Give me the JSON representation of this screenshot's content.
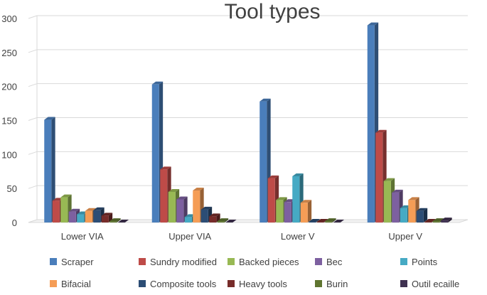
{
  "chart_data": {
    "type": "bar",
    "style": "3d-clustered-column",
    "title": "Tool types",
    "xlabel": "",
    "ylabel": "",
    "ylim": [
      0,
      300
    ],
    "yticks": [
      0,
      50,
      100,
      150,
      200,
      250,
      300
    ],
    "grid": true,
    "legend_position": "bottom",
    "categories": [
      "Lower VIA",
      "Upper VIA",
      "Lower V",
      "Upper V"
    ],
    "series": [
      {
        "name": "Scraper",
        "color": "#4a7ebb",
        "values": [
          151,
          203,
          178,
          290
        ]
      },
      {
        "name": "Sundry modified",
        "color": "#be4b48",
        "values": [
          32,
          78,
          65,
          132
        ]
      },
      {
        "name": "Backed pieces",
        "color": "#98b954",
        "values": [
          37,
          45,
          33,
          61
        ]
      },
      {
        "name": "Bec",
        "color": "#7d60a0",
        "values": [
          16,
          34,
          30,
          44
        ]
      },
      {
        "name": "Points",
        "color": "#46aac4",
        "values": [
          12,
          8,
          68,
          21
        ]
      },
      {
        "name": "Bifacial",
        "color": "#f59d56",
        "values": [
          17,
          47,
          29,
          33
        ]
      },
      {
        "name": "Composite tools",
        "color": "#2c4d75",
        "values": [
          18,
          19,
          1,
          17
        ]
      },
      {
        "name": "Heavy tools",
        "color": "#772c2a",
        "values": [
          10,
          9,
          1,
          1
        ]
      },
      {
        "name": "Burin",
        "color": "#5f7530",
        "values": [
          2,
          2,
          2,
          2
        ]
      },
      {
        "name": "Outil ecaille",
        "color": "#3f3151",
        "values": [
          0,
          0,
          0,
          3
        ]
      }
    ]
  }
}
